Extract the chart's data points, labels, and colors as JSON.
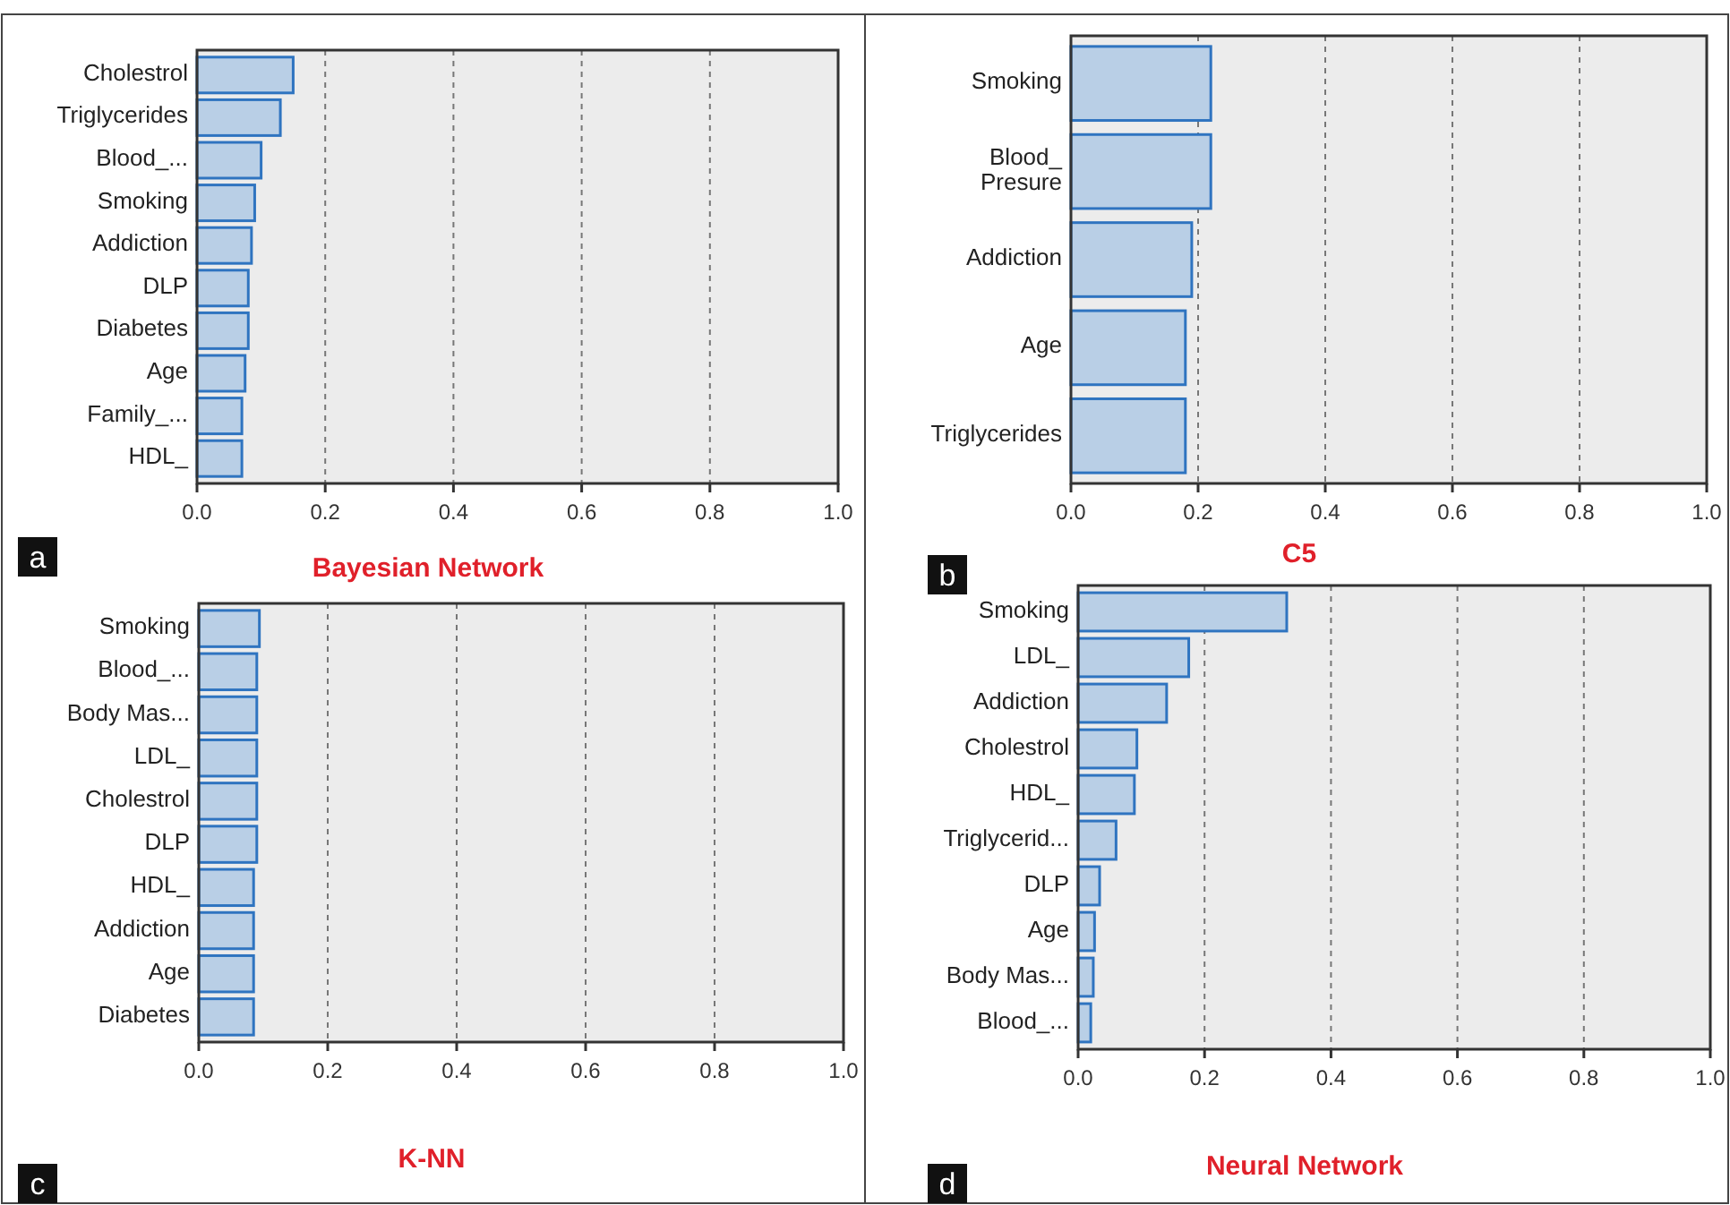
{
  "chart_data": [
    {
      "type": "bar",
      "orientation": "horizontal",
      "title": "Bayesian Network",
      "annotations": [
        "a"
      ],
      "categories": [
        "Cholestrol",
        "Triglycerides",
        "Blood_...",
        "Smoking",
        "Addiction",
        "DLP",
        "Diabetes",
        "Age",
        "Family_...",
        "HDL_"
      ],
      "values": [
        0.15,
        0.13,
        0.1,
        0.09,
        0.085,
        0.08,
        0.08,
        0.075,
        0.07,
        0.07
      ],
      "color": "#b9cfe6",
      "xlim": [
        0,
        1
      ],
      "xticks": [
        {
          "value": 0,
          "label": "0.0"
        },
        {
          "value": 0.2,
          "label": "0.2"
        },
        {
          "value": 0.4,
          "label": "0.4"
        },
        {
          "value": 0.6,
          "label": "0.6"
        },
        {
          "value": 0.8,
          "label": "0.8"
        },
        {
          "value": 1,
          "label": "1.0"
        }
      ],
      "grid": "x"
    },
    {
      "type": "bar",
      "orientation": "horizontal",
      "title": "C5",
      "annotations": [
        "b"
      ],
      "categories": [
        "Smoking",
        "Blood_\nPresure",
        "Addiction",
        "Age",
        "Triglycerides"
      ],
      "values": [
        0.22,
        0.22,
        0.19,
        0.18,
        0.18
      ],
      "color": "#b9cfe6",
      "xlim": [
        0,
        1
      ],
      "xticks": [
        {
          "value": 0,
          "label": "0.0"
        },
        {
          "value": 0.2,
          "label": "0.2"
        },
        {
          "value": 0.4,
          "label": "0.4"
        },
        {
          "value": 0.6,
          "label": "0.6"
        },
        {
          "value": 0.8,
          "label": "0.8"
        },
        {
          "value": 1,
          "label": "1.0"
        }
      ],
      "grid": "x"
    },
    {
      "type": "bar",
      "orientation": "horizontal",
      "title": "K-NN",
      "annotations": [
        "c"
      ],
      "categories": [
        "Smoking",
        "Blood_...",
        "Body Mas...",
        "LDL_",
        "Cholestrol",
        "DLP",
        "HDL_",
        "Addiction",
        "Age",
        "Diabetes"
      ],
      "values": [
        0.094,
        0.09,
        0.09,
        0.09,
        0.09,
        0.09,
        0.085,
        0.085,
        0.085,
        0.085
      ],
      "color": "#b9cfe6",
      "xlim": [
        0,
        1
      ],
      "xticks": [
        {
          "value": 0,
          "label": "0.0"
        },
        {
          "value": 0.2,
          "label": "0.2"
        },
        {
          "value": 0.4,
          "label": "0.4"
        },
        {
          "value": 0.6,
          "label": "0.6"
        },
        {
          "value": 0.8,
          "label": "0.8"
        },
        {
          "value": 1,
          "label": "1.0"
        }
      ],
      "grid": "x"
    },
    {
      "type": "bar",
      "orientation": "horizontal",
      "title": "Neural Network",
      "annotations": [
        "d"
      ],
      "categories": [
        "Smoking",
        "LDL_",
        "Addiction",
        "Cholestrol",
        "HDL_",
        "Triglycerid...",
        "DLP",
        "Age",
        "Body Mas...",
        "Blood_..."
      ],
      "values": [
        0.33,
        0.175,
        0.14,
        0.093,
        0.089,
        0.06,
        0.034,
        0.026,
        0.024,
        0.02
      ],
      "color": "#b9cfe6",
      "xlim": [
        0,
        1
      ],
      "xticks": [
        {
          "value": 0,
          "label": "0.0"
        },
        {
          "value": 0.2,
          "label": "0.2"
        },
        {
          "value": 0.4,
          "label": "0.4"
        },
        {
          "value": 0.6,
          "label": "0.6"
        },
        {
          "value": 0.8,
          "label": "0.8"
        },
        {
          "value": 1,
          "label": "1.0"
        }
      ],
      "grid": "x"
    }
  ]
}
